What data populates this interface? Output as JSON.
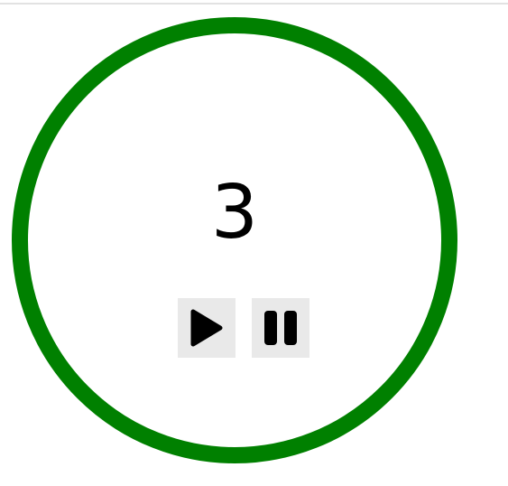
{
  "timer": {
    "count": "3",
    "ring_color": "#008000"
  },
  "controls": {
    "play": {
      "icon": "play-icon"
    },
    "pause": {
      "icon": "pause-icon"
    }
  }
}
